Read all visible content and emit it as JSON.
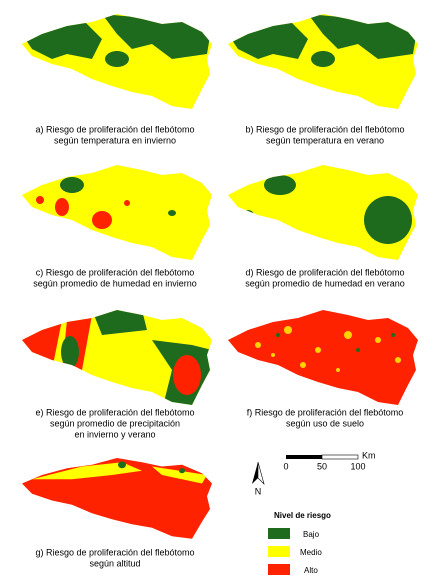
{
  "panels": [
    {
      "caption_lines": [
        "a) Riesgo de proliferación del flebótomo",
        "según temperatura en invierno"
      ]
    },
    {
      "caption_lines": [
        "b) Riesgo de proliferación del flebótomo",
        "según temperatura en verano"
      ]
    },
    {
      "caption_lines": [
        "c) Riesgo de proliferación del flebótomo",
        "según promedio de humedad en invierno"
      ]
    },
    {
      "caption_lines": [
        "d) Riesgo de proliferación del flebótomo",
        "según promedio de humedad en verano"
      ]
    },
    {
      "caption_lines": [
        "e) Riesgo de proliferación del flebótomo",
        "según promedio de precipitación",
        "en invierno y verano"
      ]
    },
    {
      "caption_lines": [
        "f) Riesgo de proliferación del flebótomo",
        "según uso de suelo"
      ]
    },
    {
      "caption_lines": [
        "g) Riesgo de proliferación del flebótomo",
        "según altitud"
      ]
    }
  ],
  "scale_bar": {
    "labels": [
      "0",
      "50",
      "100"
    ],
    "unit": "Km"
  },
  "north_arrow": "N",
  "legend": {
    "title": "Nivel de riesgo",
    "items": [
      "Bajo",
      "Medio",
      "Alto"
    ]
  }
}
